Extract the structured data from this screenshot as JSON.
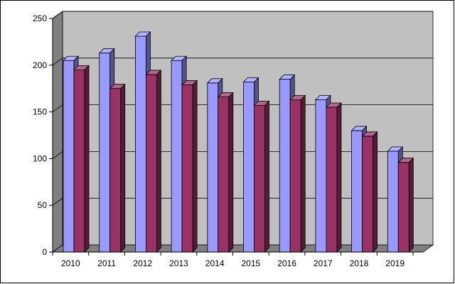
{
  "chart_data": {
    "type": "bar",
    "title": "",
    "xlabel": "",
    "ylabel": "",
    "categories": [
      "2010",
      "2011",
      "2012",
      "2013",
      "2014",
      "2015",
      "2016",
      "2017",
      "2018",
      "2019"
    ],
    "series": [
      {
        "values": [
          205,
          213,
          231,
          205,
          181,
          182,
          185,
          163,
          130,
          108
        ],
        "color": "#9999ff"
      },
      {
        "values": [
          195,
          175,
          190,
          179,
          166,
          157,
          163,
          155,
          124,
          96
        ],
        "color": "#993366"
      }
    ],
    "ylim": [
      0,
      250
    ],
    "yticks": [
      "0",
      "50",
      "100",
      "150",
      "200",
      "250"
    ],
    "grid": true,
    "legend": "none",
    "wall_color": "#c0c0c0",
    "three_d": true
  }
}
